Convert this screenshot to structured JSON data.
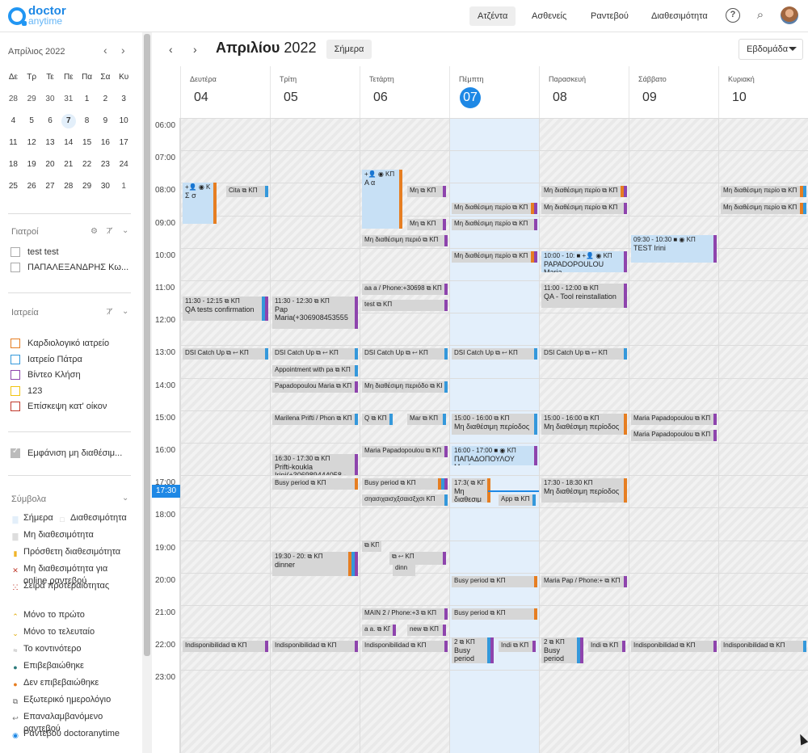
{
  "app": {
    "logo_line1": "doctor",
    "logo_line2": "anytime"
  },
  "nav": [
    {
      "label": "Ατζέντα",
      "active": true
    },
    {
      "label": "Ασθενείς"
    },
    {
      "label": "Ραντεβού"
    },
    {
      "label": "Διαθεσιμότητα"
    }
  ],
  "mini_calendar": {
    "title": "Απρίλιος 2022",
    "weekdays": [
      "Δε",
      "Τρ",
      "Τε",
      "Πε",
      "Πα",
      "Σα",
      "Κυ"
    ],
    "weeks": [
      [
        "28",
        "29",
        "30",
        "31",
        "1",
        "2",
        "3"
      ],
      [
        "4",
        "5",
        "6",
        "7",
        "8",
        "9",
        "10"
      ],
      [
        "11",
        "12",
        "13",
        "14",
        "15",
        "16",
        "17"
      ],
      [
        "18",
        "19",
        "20",
        "21",
        "22",
        "23",
        "24"
      ],
      [
        "25",
        "26",
        "27",
        "28",
        "29",
        "30",
        "1"
      ]
    ],
    "today": "7"
  },
  "doctors": {
    "title": "Γιατροί",
    "items": [
      "test test",
      "ΠΑΠΑΛΕΞΑΝΔΡΗΣ Κω..."
    ]
  },
  "clinics": {
    "title": "Ιατρεία",
    "items": [
      {
        "label": "Καρδιολογικό ιατρείο",
        "color": "#e67e22"
      },
      {
        "label": "Ιατρείο Πάτρα",
        "color": "#3498db"
      },
      {
        "label": "Βίντεο Κλήση",
        "color": "#8e44ad"
      },
      {
        "label": "123",
        "color": "#f1c40f"
      },
      {
        "label": "Επίσκεψη κατ' οίκον",
        "color": "#c0392b"
      }
    ]
  },
  "show_unavailable": "Εμφάνιση μη διαθέσιμ...",
  "legend": {
    "title": "Σύμβολα",
    "items": [
      "Σήμερα",
      "Διαθεσιμότητα",
      "Μη διαθεσιμότητα",
      "Πρόσθετη διαθεσιμότητα",
      "Μη διαθεσιμότητα για online ραντεβού",
      "Σειρά προτεραιότητας",
      "Μόνο το πρώτο",
      "Μόνο το τελευταίο",
      "Το κοντινότερο",
      "Επιβεβαιώθηκε",
      "Δεν επιβεβαιώθηκε",
      "Εξωτερικό ημερολόγιο",
      "Επαναλαμβανόμενο ραντεβού",
      "Ραντεβού doctoranytime"
    ]
  },
  "calendar": {
    "month": "Απριλίου",
    "year": "2022",
    "today_label": "Σήμερα",
    "view": "Εβδομάδα",
    "days": [
      {
        "name": "Δευτέρα",
        "num": "04"
      },
      {
        "name": "Τρίτη",
        "num": "05"
      },
      {
        "name": "Τετάρτη",
        "num": "06"
      },
      {
        "name": "Πέμπτη",
        "num": "07",
        "today": true
      },
      {
        "name": "Παρασκευή",
        "num": "08"
      },
      {
        "name": "Σάββατο",
        "num": "09"
      },
      {
        "name": "Κυριακή",
        "num": "10"
      }
    ],
    "hours": [
      "06:00",
      "07:00",
      "08:00",
      "09:00",
      "10:00",
      "11:00",
      "12:00",
      "13:00",
      "14:00",
      "15:00",
      "16:00",
      "17:00",
      "18:00",
      "19:00",
      "20:00",
      "21:00",
      "22:00",
      "23:00"
    ],
    "now_label": "17:30",
    "events": [
      {
        "day": 0,
        "s": 8.0,
        "e": 9.25,
        "x": 0,
        "w": 42,
        "title": "+👤 ◉ ΚΠ",
        "body": "Σ σ",
        "blue": true,
        "bars": [
          "#e67e22"
        ]
      },
      {
        "day": 0,
        "s": 8.1,
        "e": 8.45,
        "x": 54,
        "w": 52,
        "title": "Cita ⧉ ΚΠ",
        "bars": [
          "#3498db"
        ]
      },
      {
        "day": 0,
        "s": 11.5,
        "e": 12.25,
        "x": 0,
        "w": 106,
        "title": "11:30 - 12:15 ⧉ ΚΠ",
        "body": "QA tests confirmation",
        "bars": [
          "#3498db",
          "#8e44ad"
        ]
      },
      {
        "day": 0,
        "s": 13.1,
        "e": 13.45,
        "x": 0,
        "w": 106,
        "title": "DSI Catch Up ⧉ ↩ ΚΠ",
        "bars": [
          "#3498db"
        ]
      },
      {
        "day": 0,
        "s": 22.1,
        "e": 22.45,
        "x": 0,
        "w": 106,
        "title": "Indisponibilidad ⧉ ΚΠ",
        "bars": [
          "#8e44ad"
        ]
      },
      {
        "day": 1,
        "s": 11.5,
        "e": 12.5,
        "x": 0,
        "w": 106,
        "title": "11:30 - 12:30 ⧉ ΚΠ",
        "body": "Pap Maria(+306908453555",
        "bars": [
          "#8e44ad"
        ]
      },
      {
        "day": 1,
        "s": 13.1,
        "e": 13.45,
        "x": 0,
        "w": 106,
        "title": "DSI Catch Up ⧉ ↩ ΚΠ",
        "bars": [
          "#3498db"
        ]
      },
      {
        "day": 1,
        "s": 13.6,
        "e": 13.95,
        "x": 0,
        "w": 106,
        "title": "Appointment with pa ⧉ ΚΠ",
        "bars": [
          "#3498db"
        ]
      },
      {
        "day": 1,
        "s": 14.1,
        "e": 14.45,
        "x": 0,
        "w": 106,
        "title": "Papadopoulou Maria ⧉ ΚΠ",
        "bars": [
          "#8e44ad"
        ]
      },
      {
        "day": 1,
        "s": 15.1,
        "e": 15.45,
        "x": 0,
        "w": 106,
        "title": "Marilena Prifti / Phon ⧉ ΚΠ",
        "bars": [
          "#3498db"
        ]
      },
      {
        "day": 1,
        "s": 16.35,
        "e": 17.0,
        "x": 0,
        "w": 106,
        "title": "16:30 - 17:30 ⧉ ΚΠ",
        "body": "Prifti-koukla Irini(+306989444058 -",
        "bars": [
          "#8e44ad"
        ]
      },
      {
        "day": 1,
        "s": 17.1,
        "e": 17.45,
        "x": 0,
        "w": 106,
        "title": "Busy period ⧉ ΚΠ",
        "bars": [
          "#e67e22"
        ]
      },
      {
        "day": 1,
        "s": 19.35,
        "e": 20.1,
        "x": 0,
        "w": 106,
        "title": "19:30 - 20: ⧉ ΚΠ",
        "body": "dinner",
        "bars": [
          "#e67e22",
          "#3498db",
          "#8e44ad"
        ]
      },
      {
        "day": 1,
        "s": 22.1,
        "e": 22.45,
        "x": 0,
        "w": 106,
        "title": "Indisponibilidad ⧉ ΚΠ",
        "bars": [
          "#8e44ad"
        ]
      },
      {
        "day": 2,
        "s": 7.6,
        "e": 9.4,
        "x": 0,
        "w": 50,
        "title": "+👤 ◉ ΚΠ",
        "body": "Α α",
        "blue": true,
        "bars": [
          "#e67e22"
        ]
      },
      {
        "day": 2,
        "s": 8.1,
        "e": 8.45,
        "x": 56,
        "w": 48,
        "title": "Μη ⧉ ΚΠ",
        "bars": [
          "#8e44ad"
        ]
      },
      {
        "day": 2,
        "s": 9.1,
        "e": 9.45,
        "x": 56,
        "w": 48,
        "title": "Μη ⧉ ΚΠ",
        "bars": [
          "#8e44ad"
        ]
      },
      {
        "day": 2,
        "s": 9.6,
        "e": 9.95,
        "x": 0,
        "w": 106,
        "title": "Μη διαθέσιμη περιό ⧉ ΚΠ",
        "bars": [
          "#8e44ad"
        ]
      },
      {
        "day": 2,
        "s": 11.1,
        "e": 11.45,
        "x": 0,
        "w": 106,
        "title": "aa a / Phone:+30698 ⧉ ΚΠ",
        "bars": [
          "#8e44ad"
        ]
      },
      {
        "day": 2,
        "s": 11.6,
        "e": 11.95,
        "x": 0,
        "w": 106,
        "title": "test ⧉ ΚΠ",
        "bars": [
          "#8e44ad"
        ]
      },
      {
        "day": 2,
        "s": 13.1,
        "e": 13.45,
        "x": 0,
        "w": 106,
        "title": "DSI Catch Up ⧉ ↩ ΚΠ",
        "bars": [
          "#3498db"
        ]
      },
      {
        "day": 2,
        "s": 14.1,
        "e": 14.45,
        "x": 0,
        "w": 106,
        "title": "Μη διαθέσιμη περιόδο ⧉ ΚΠ",
        "bars": [
          "#3498db"
        ]
      },
      {
        "day": 2,
        "s": 15.1,
        "e": 15.45,
        "x": 0,
        "w": 38,
        "title": "Q ⧉ ΚΠ",
        "bars": [
          "#3498db"
        ]
      },
      {
        "day": 2,
        "s": 15.1,
        "e": 15.45,
        "x": 56,
        "w": 48,
        "title": "Mar ⧉ ΚΠ",
        "bars": [
          "#3498db"
        ]
      },
      {
        "day": 2,
        "s": 16.1,
        "e": 16.45,
        "x": 0,
        "w": 106,
        "title": "Maria Papadopoulou ⧉ ΚΠ",
        "bars": [
          "#8e44ad"
        ]
      },
      {
        "day": 2,
        "s": 17.1,
        "e": 17.45,
        "x": 0,
        "w": 106,
        "title": "Busy period ⧉ ΚΠ",
        "bars": [
          "#e67e22",
          "#3498db",
          "#8e44ad"
        ]
      },
      {
        "day": 2,
        "s": 17.6,
        "e": 17.95,
        "x": 0,
        "w": 106,
        "title": "σηασιχαισχξσαισξχσι ΚΠ",
        "bars": [
          "#3498db"
        ]
      },
      {
        "day": 2,
        "s": 19.0,
        "e": 19.35,
        "x": 0,
        "w": 24,
        "title": "⧉ ΚΠ",
        "bars": []
      },
      {
        "day": 2,
        "s": 19.35,
        "e": 19.75,
        "x": 34,
        "w": 70,
        "title": "⧉ ↩ ΚΠ",
        "bars": [
          "#8e44ad"
        ]
      },
      {
        "day": 2,
        "s": 19.7,
        "e": 20.1,
        "x": 38,
        "w": 28,
        "title": "dinn",
        "bars": []
      },
      {
        "day": 2,
        "s": 21.1,
        "e": 21.45,
        "x": 0,
        "w": 106,
        "title": "MAIN 2 / Phone:+3 ⧉ ΚΠ",
        "bars": [
          "#8e44ad"
        ]
      },
      {
        "day": 2,
        "s": 21.6,
        "e": 21.95,
        "x": 0,
        "w": 42,
        "title": "a a. ⧉ ΚΠ",
        "bars": [
          "#8e44ad"
        ]
      },
      {
        "day": 2,
        "s": 21.6,
        "e": 21.95,
        "x": 56,
        "w": 48,
        "title": "new ⧉ ΚΠ",
        "bars": [
          "#8e44ad"
        ]
      },
      {
        "day": 2,
        "s": 22.1,
        "e": 22.45,
        "x": 0,
        "w": 106,
        "title": "Indisponibilidad ⧉ ΚΠ",
        "bars": [
          "#8e44ad"
        ]
      },
      {
        "day": 3,
        "s": 8.6,
        "e": 8.95,
        "x": 0,
        "w": 106,
        "title": "Μη διαθέσιμη περίο ⧉ ΚΠ",
        "bars": [
          "#e67e22",
          "#8e44ad"
        ]
      },
      {
        "day": 3,
        "s": 9.1,
        "e": 9.45,
        "x": 0,
        "w": 106,
        "title": "Μη διαθέσιμη περίο ⧉ ΚΠ",
        "bars": [
          "#8e44ad"
        ]
      },
      {
        "day": 3,
        "s": 10.1,
        "e": 10.45,
        "x": 0,
        "w": 106,
        "title": "Μη διαθέσιμη περίο ⧉ ΚΠ",
        "bars": [
          "#e67e22",
          "#8e44ad"
        ]
      },
      {
        "day": 3,
        "s": 13.1,
        "e": 13.45,
        "x": 0,
        "w": 106,
        "title": "DSI Catch Up ⧉ ↩ ΚΠ",
        "bars": [
          "#3498db"
        ]
      },
      {
        "day": 3,
        "s": 15.1,
        "e": 15.75,
        "x": 0,
        "w": 106,
        "title": "15:00 - 16:00 ⧉ ΚΠ",
        "body": "Μη διαθέσιμη περίοδος",
        "bars": [
          "#3498db"
        ]
      },
      {
        "day": 3,
        "s": 16.1,
        "e": 16.7,
        "x": 0,
        "w": 106,
        "title": "16:00 - 17:00 ■ ◉ ΚΠ",
        "body": "ΠΑΠΑΔΟΠΟΥΛΟΥ Μαρία",
        "blue": true,
        "bars": [
          "#8e44ad"
        ]
      },
      {
        "day": 3,
        "s": 17.1,
        "e": 17.85,
        "x": 0,
        "w": 48,
        "title": "17:3( ⧉ ΚΠ",
        "body": "Μη διαθεσιμ",
        "bars": [
          "#e67e22"
        ]
      },
      {
        "day": 3,
        "s": 17.6,
        "e": 17.95,
        "x": 58,
        "w": 46,
        "title": "App ⧉ ΚΠ",
        "bars": [
          "#3498db"
        ]
      },
      {
        "day": 3,
        "s": 20.1,
        "e": 20.45,
        "x": 0,
        "w": 106,
        "title": "Busy period ⧉ ΚΠ",
        "bars": [
          "#e67e22"
        ]
      },
      {
        "day": 3,
        "s": 21.1,
        "e": 21.45,
        "x": 0,
        "w": 106,
        "title": "Busy period ⧉ ΚΠ",
        "bars": [
          "#e67e22"
        ]
      },
      {
        "day": 3,
        "s": 22.0,
        "e": 22.8,
        "x": 0,
        "w": 52,
        "title": "2 ⧉ ΚΠ",
        "body": "Busy period",
        "bars": [
          "#3498db",
          "#8e44ad"
        ]
      },
      {
        "day": 3,
        "s": 22.1,
        "e": 22.45,
        "x": 58,
        "w": 46,
        "title": "Indi ⧉ ΚΠ",
        "bars": [
          "#8e44ad"
        ]
      },
      {
        "day": 4,
        "s": 8.1,
        "e": 8.45,
        "x": 0,
        "w": 106,
        "title": "Μη διαθέσιμη περίο ⧉ ΚΠ",
        "bars": [
          "#e67e22",
          "#8e44ad"
        ]
      },
      {
        "day": 4,
        "s": 8.6,
        "e": 8.95,
        "x": 0,
        "w": 106,
        "title": "Μη διαθέσιμη περίο ⧉ ΚΠ",
        "bars": [
          "#8e44ad"
        ]
      },
      {
        "day": 4,
        "s": 10.1,
        "e": 10.75,
        "x": 0,
        "w": 106,
        "title": "10:00 - 10: ■ +👤 ◉ ΚΠ",
        "body": "PAPADOPOULOU Maria",
        "blue": true,
        "bars": [
          "#8e44ad"
        ]
      },
      {
        "day": 4,
        "s": 11.1,
        "e": 11.85,
        "x": 0,
        "w": 106,
        "title": "11:00 - 12:00 ⧉ ΚΠ",
        "body": "QA - Tool reinstallation",
        "bars": [
          "#8e44ad"
        ]
      },
      {
        "day": 4,
        "s": 13.1,
        "e": 13.45,
        "x": 0,
        "w": 106,
        "title": "DSI Catch Up ⧉ ↩ ΚΠ",
        "bars": [
          "#3498db"
        ]
      },
      {
        "day": 4,
        "s": 15.1,
        "e": 15.75,
        "x": 0,
        "w": 106,
        "title": "15:00 - 16:00 ⧉ ΚΠ",
        "body": "Μη διαθέσιμη περίοδος",
        "bars": [
          "#e67e22"
        ]
      },
      {
        "day": 4,
        "s": 17.1,
        "e": 17.85,
        "x": 0,
        "w": 106,
        "title": "17:30 - 18:30 ΚΠ",
        "body": "Μη διαθέσιμη περίοδος",
        "bars": [
          "#e67e22"
        ]
      },
      {
        "day": 4,
        "s": 20.1,
        "e": 20.45,
        "x": 0,
        "w": 106,
        "title": "Maria Pap / Phone:+ ⧉ ΚΠ",
        "bars": [
          "#8e44ad"
        ]
      },
      {
        "day": 4,
        "s": 22.0,
        "e": 22.8,
        "x": 0,
        "w": 52,
        "title": "2 ⧉ ΚΠ",
        "body": "Busy period",
        "bars": [
          "#3498db",
          "#8e44ad"
        ]
      },
      {
        "day": 4,
        "s": 22.1,
        "e": 22.45,
        "x": 58,
        "w": 46,
        "title": "Indi ⧉ ΚΠ",
        "bars": [
          "#8e44ad"
        ]
      },
      {
        "day": 5,
        "s": 9.6,
        "e": 10.45,
        "x": 0,
        "w": 106,
        "title": "09:30 - 10:30 ■ ◉ ΚΠ",
        "body": "TEST Irini",
        "blue": true,
        "bars": [
          "#8e44ad"
        ]
      },
      {
        "day": 5,
        "s": 15.1,
        "e": 15.45,
        "x": 0,
        "w": 106,
        "title": "Maria Papadopoulou ⧉ ΚΠ",
        "bars": [
          "#8e44ad"
        ]
      },
      {
        "day": 5,
        "s": 15.6,
        "e": 15.95,
        "x": 0,
        "w": 106,
        "title": "Maria Papadopoulou ⧉ ΚΠ",
        "bars": [
          "#8e44ad"
        ]
      },
      {
        "day": 5,
        "s": 22.1,
        "e": 22.45,
        "x": 0,
        "w": 106,
        "title": "Indisponibilidad ⧉ ΚΠ",
        "bars": [
          "#8e44ad"
        ]
      },
      {
        "day": 6,
        "s": 8.1,
        "e": 8.45,
        "x": 0,
        "w": 106,
        "title": "Μη διαθέσιμη περίο ⧉ ΚΠ",
        "bars": [
          "#e67e22",
          "#3498db"
        ]
      },
      {
        "day": 6,
        "s": 8.6,
        "e": 8.95,
        "x": 0,
        "w": 106,
        "title": "Μη διαθέσιμη περίο ⧉ ΚΠ",
        "bars": [
          "#e67e22",
          "#3498db"
        ]
      },
      {
        "day": 6,
        "s": 22.1,
        "e": 22.45,
        "x": 0,
        "w": 106,
        "title": "Indisponibilidad ⧉ ΚΠ",
        "bars": [
          "#3498db"
        ]
      }
    ]
  }
}
